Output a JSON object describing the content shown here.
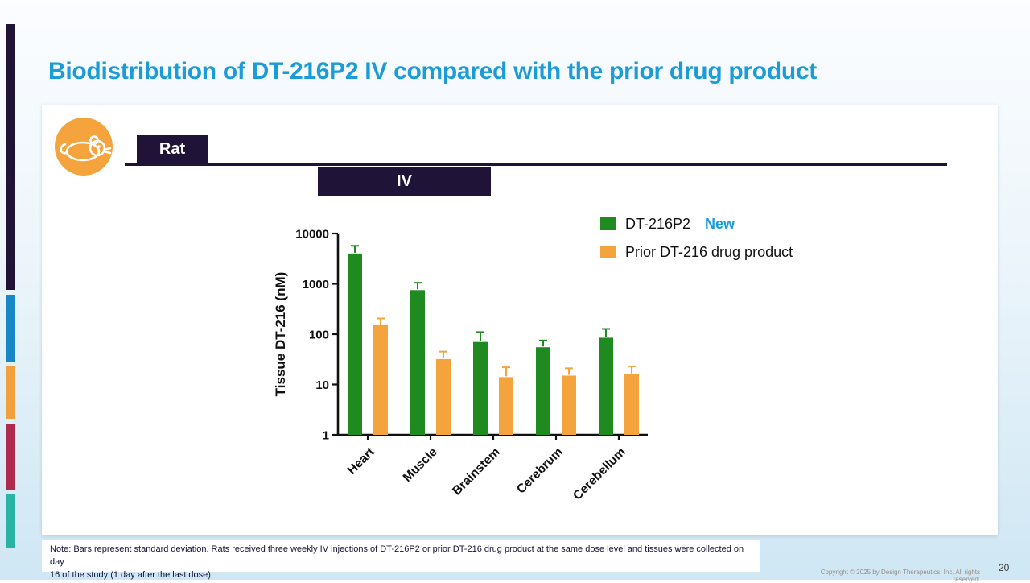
{
  "slide": {
    "title": "Biodistribution of DT-216P2 IV compared with the prior drug product",
    "page_number": "20",
    "copyright": "Copyright © 2025 by Design Therapeutics, Inc. All rights reserved.",
    "note_line1": "Note: Bars represent standard deviation. Rats received three weekly IV injections of DT-216P2 or prior DT-216 drug product at the same dose level and tissues were collected on day",
    "note_line2": "16 of the study (1 day after the last dose)"
  },
  "panel": {
    "species_label": "Rat",
    "route_label": "IV"
  },
  "legend": {
    "series1_label": "DT-216P2",
    "series1_tag": "New",
    "series2_label": "Prior DT-216 drug product"
  },
  "colors": {
    "title_blue": "#1b9bd8",
    "navy": "#201338",
    "green": "#1e8a20",
    "orange": "#f5a33c"
  },
  "chart_data": {
    "type": "bar",
    "scale": "log",
    "title": "",
    "xlabel": "",
    "ylabel": "Tissue DT-216 (nM)",
    "ylim": [
      1,
      10000
    ],
    "yticks": [
      10000,
      1000,
      100,
      10,
      1
    ],
    "categories": [
      "Heart",
      "Muscle",
      "Brainstem",
      "Cerebrum",
      "Cerebellum"
    ],
    "series": [
      {
        "name": "DT-216P2",
        "color": "#1e8a20",
        "values": [
          4000,
          750,
          70,
          55,
          85
        ],
        "errors": [
          1700,
          300,
          40,
          20,
          42
        ]
      },
      {
        "name": "Prior DT-216 drug product",
        "color": "#f5a33c",
        "values": [
          150,
          32,
          14,
          15,
          16
        ],
        "errors": [
          55,
          13,
          8,
          6,
          7
        ]
      }
    ],
    "legend_position": "top-right",
    "grid": false
  }
}
